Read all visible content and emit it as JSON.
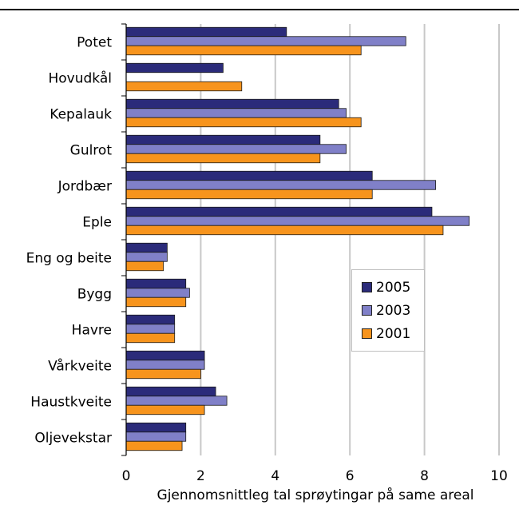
{
  "header": {
    "title": ""
  },
  "chart_data": {
    "type": "bar",
    "orientation": "horizontal",
    "categories": [
      "Potet",
      "Hovudkål",
      "Kepalauk",
      "Gulrot",
      "Jordbær",
      "Eple",
      "Eng og beite",
      "Bygg",
      "Havre",
      "Vårkveite",
      "Haustkveite",
      "Oljevekstar"
    ],
    "series": [
      {
        "name": "2005",
        "color": "#2b2b7a",
        "values": [
          4.3,
          2.6,
          5.7,
          5.2,
          6.6,
          8.2,
          1.1,
          1.6,
          1.3,
          2.1,
          2.4,
          1.6
        ]
      },
      {
        "name": "2003",
        "color": "#8080c8",
        "values": [
          7.5,
          null,
          5.9,
          5.9,
          8.3,
          9.2,
          1.1,
          1.7,
          1.3,
          2.1,
          2.7,
          1.6
        ]
      },
      {
        "name": "2001",
        "color": "#f7941d",
        "values": [
          6.3,
          3.1,
          6.3,
          5.2,
          6.6,
          8.5,
          1.0,
          1.6,
          1.3,
          2.0,
          2.1,
          1.5
        ]
      }
    ],
    "xlabel": "Gjennomsnittleg tal sprøytingar på same areal",
    "ylabel": "",
    "xlim": [
      0,
      10
    ],
    "xticks": [
      "0",
      "2",
      "4",
      "6",
      "8",
      "10"
    ],
    "grid": true,
    "legend_placement": "center-right"
  }
}
